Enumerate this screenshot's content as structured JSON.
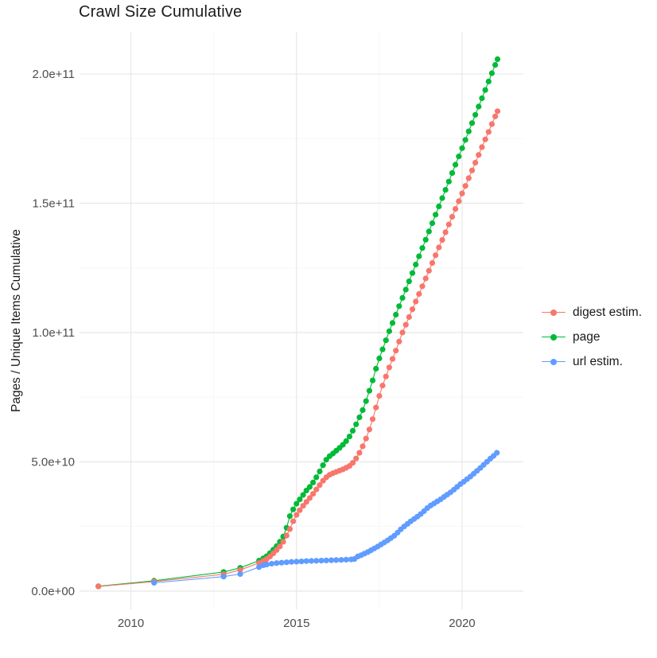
{
  "chart_data": {
    "type": "line",
    "title": "Crawl Size Cumulative",
    "xlabel": "",
    "ylabel": "Pages / Unique Items Cumulative",
    "value_unit": "1e9 (values below are billions of pages / unique items)",
    "xlim": [
      2008.45,
      2021.85
    ],
    "ylim_billions": [
      -7.1,
      216.3
    ],
    "grid": "major and minor, light gray on white",
    "legend_position": "right",
    "x_axis": {
      "major_ticks": [
        {
          "value": 2010,
          "label": "2010"
        },
        {
          "value": 2015,
          "label": "2015"
        },
        {
          "value": 2020,
          "label": "2020"
        }
      ],
      "minor_ticks": [
        2012.5,
        2017.5
      ]
    },
    "y_axis": {
      "major_ticks": [
        {
          "value": 0,
          "label": "0.0e+00"
        },
        {
          "value": 50,
          "label": "5.0e+10"
        },
        {
          "value": 100,
          "label": "1.0e+11"
        },
        {
          "value": 150,
          "label": "1.5e+11"
        },
        {
          "value": 200,
          "label": "2.0e+11"
        }
      ],
      "minor_ticks": [
        25,
        75,
        125,
        175
      ]
    },
    "draw_order": [
      "page",
      "digest estim.",
      "url estim."
    ],
    "series": [
      {
        "name": "digest estim.",
        "color": "#F8766D",
        "points": [
          [
            2009.02,
            1.8
          ],
          [
            2010.7,
            3.7
          ],
          [
            2012.8,
            6.5
          ],
          [
            2013.3,
            8.2
          ],
          [
            2013.87,
            10.9
          ],
          [
            2014.0,
            11.7
          ],
          [
            2014.1,
            12.4
          ],
          [
            2014.2,
            13.4
          ],
          [
            2014.3,
            14.6
          ],
          [
            2014.4,
            15.9
          ],
          [
            2014.5,
            17.3
          ],
          [
            2014.6,
            19.1
          ],
          [
            2014.7,
            21.5
          ],
          [
            2014.8,
            24.0
          ],
          [
            2014.9,
            27.0
          ],
          [
            2015.0,
            29.5
          ],
          [
            2015.1,
            31.3
          ],
          [
            2015.2,
            33.0
          ],
          [
            2015.3,
            34.5
          ],
          [
            2015.4,
            36.0
          ],
          [
            2015.5,
            37.6
          ],
          [
            2015.6,
            39.3
          ],
          [
            2015.7,
            41.0
          ],
          [
            2015.8,
            42.7
          ],
          [
            2015.9,
            44.0
          ],
          [
            2016.0,
            45.0
          ],
          [
            2016.1,
            45.6
          ],
          [
            2016.2,
            46.1
          ],
          [
            2016.3,
            46.6
          ],
          [
            2016.4,
            47.1
          ],
          [
            2016.5,
            47.7
          ],
          [
            2016.6,
            48.4
          ],
          [
            2016.7,
            49.6
          ],
          [
            2016.8,
            51.3
          ],
          [
            2016.9,
            53.5
          ],
          [
            2017.0,
            56.0
          ],
          [
            2017.1,
            59.0
          ],
          [
            2017.2,
            62.5
          ],
          [
            2017.3,
            66.5
          ],
          [
            2017.4,
            71.0
          ],
          [
            2017.5,
            75.5
          ],
          [
            2017.6,
            79.5
          ],
          [
            2017.7,
            83.0
          ],
          [
            2017.8,
            86.5
          ],
          [
            2017.9,
            89.8
          ],
          [
            2018.0,
            93.0
          ],
          [
            2018.1,
            96.5
          ],
          [
            2018.2,
            100.0
          ],
          [
            2018.3,
            103.0
          ],
          [
            2018.4,
            106.0
          ],
          [
            2018.5,
            109.0
          ],
          [
            2018.6,
            112.0
          ],
          [
            2018.7,
            114.9
          ],
          [
            2018.8,
            117.9
          ],
          [
            2018.9,
            120.9
          ],
          [
            2019.0,
            123.9
          ],
          [
            2019.1,
            126.9
          ],
          [
            2019.2,
            129.9
          ],
          [
            2019.3,
            132.9
          ],
          [
            2019.4,
            135.8
          ],
          [
            2019.5,
            138.8
          ],
          [
            2019.6,
            141.8
          ],
          [
            2019.7,
            144.8
          ],
          [
            2019.8,
            147.8
          ],
          [
            2019.9,
            150.8
          ],
          [
            2020.0,
            153.8
          ],
          [
            2020.1,
            156.7
          ],
          [
            2020.2,
            159.7
          ],
          [
            2020.3,
            162.7
          ],
          [
            2020.4,
            165.7
          ],
          [
            2020.5,
            168.7
          ],
          [
            2020.6,
            171.7
          ],
          [
            2020.7,
            174.7
          ],
          [
            2020.8,
            177.6
          ],
          [
            2020.9,
            180.6
          ],
          [
            2021.0,
            183.6
          ],
          [
            2021.07,
            185.6
          ]
        ]
      },
      {
        "name": "page",
        "color": "#00BA38",
        "points": [
          [
            2009.02,
            1.9
          ],
          [
            2010.7,
            4.0
          ],
          [
            2012.8,
            7.4
          ],
          [
            2013.3,
            9.0
          ],
          [
            2013.87,
            11.8
          ],
          [
            2014.0,
            12.7
          ],
          [
            2014.1,
            13.5
          ],
          [
            2014.2,
            14.7
          ],
          [
            2014.3,
            16.0
          ],
          [
            2014.4,
            17.4
          ],
          [
            2014.5,
            19.1
          ],
          [
            2014.6,
            21.1
          ],
          [
            2014.7,
            24.5
          ],
          [
            2014.8,
            29.0
          ],
          [
            2014.9,
            31.6
          ],
          [
            2015.0,
            33.8
          ],
          [
            2015.1,
            35.5
          ],
          [
            2015.2,
            37.2
          ],
          [
            2015.3,
            38.9
          ],
          [
            2015.4,
            40.3
          ],
          [
            2015.5,
            42.0
          ],
          [
            2015.6,
            44.0
          ],
          [
            2015.7,
            46.3
          ],
          [
            2015.8,
            48.7
          ],
          [
            2015.9,
            50.8
          ],
          [
            2016.0,
            52.2
          ],
          [
            2016.1,
            53.2
          ],
          [
            2016.2,
            54.3
          ],
          [
            2016.3,
            55.4
          ],
          [
            2016.4,
            56.6
          ],
          [
            2016.5,
            58.0
          ],
          [
            2016.6,
            59.8
          ],
          [
            2016.7,
            62.0
          ],
          [
            2016.8,
            64.5
          ],
          [
            2016.9,
            67.2
          ],
          [
            2017.0,
            70.0
          ],
          [
            2017.1,
            73.5
          ],
          [
            2017.2,
            77.5
          ],
          [
            2017.3,
            81.5
          ],
          [
            2017.4,
            86.0
          ],
          [
            2017.5,
            90.0
          ],
          [
            2017.6,
            93.5
          ],
          [
            2017.7,
            97.0
          ],
          [
            2017.8,
            100.5
          ],
          [
            2017.9,
            103.7
          ],
          [
            2018.0,
            106.9
          ],
          [
            2018.1,
            110.2
          ],
          [
            2018.2,
            113.4
          ],
          [
            2018.3,
            116.6
          ],
          [
            2018.4,
            119.8
          ],
          [
            2018.5,
            123.0
          ],
          [
            2018.6,
            126.3
          ],
          [
            2018.7,
            129.5
          ],
          [
            2018.8,
            132.7
          ],
          [
            2018.9,
            135.9
          ],
          [
            2019.0,
            139.1
          ],
          [
            2019.1,
            142.3
          ],
          [
            2019.2,
            145.6
          ],
          [
            2019.3,
            148.8
          ],
          [
            2019.4,
            152.0
          ],
          [
            2019.5,
            155.2
          ],
          [
            2019.6,
            158.4
          ],
          [
            2019.7,
            161.7
          ],
          [
            2019.8,
            164.9
          ],
          [
            2019.9,
            168.1
          ],
          [
            2020.0,
            171.3
          ],
          [
            2020.1,
            174.5
          ],
          [
            2020.2,
            177.8
          ],
          [
            2020.3,
            181.0
          ],
          [
            2020.4,
            184.2
          ],
          [
            2020.5,
            187.4
          ],
          [
            2020.6,
            190.6
          ],
          [
            2020.7,
            193.8
          ],
          [
            2020.8,
            197.1
          ],
          [
            2020.9,
            200.3
          ],
          [
            2021.0,
            203.5
          ],
          [
            2021.07,
            205.7
          ]
        ]
      },
      {
        "name": "url estim.",
        "color": "#619CFF",
        "points": [
          [
            2010.7,
            3.2
          ],
          [
            2012.8,
            5.6
          ],
          [
            2013.3,
            6.6
          ],
          [
            2013.87,
            9.3
          ],
          [
            2014.0,
            10.0
          ],
          [
            2014.1,
            10.3
          ],
          [
            2014.25,
            10.6
          ],
          [
            2014.4,
            10.85
          ],
          [
            2014.55,
            11.0
          ],
          [
            2014.7,
            11.15
          ],
          [
            2014.85,
            11.3
          ],
          [
            2015.0,
            11.4
          ],
          [
            2015.15,
            11.5
          ],
          [
            2015.3,
            11.6
          ],
          [
            2015.45,
            11.67
          ],
          [
            2015.6,
            11.74
          ],
          [
            2015.75,
            11.8
          ],
          [
            2015.9,
            11.87
          ],
          [
            2016.05,
            11.94
          ],
          [
            2016.2,
            12.0
          ],
          [
            2016.35,
            12.08
          ],
          [
            2016.5,
            12.16
          ],
          [
            2016.65,
            12.25
          ],
          [
            2016.75,
            12.4
          ],
          [
            2016.85,
            13.4
          ],
          [
            2016.95,
            13.9
          ],
          [
            2017.05,
            14.5
          ],
          [
            2017.15,
            15.1
          ],
          [
            2017.25,
            15.8
          ],
          [
            2017.35,
            16.5
          ],
          [
            2017.45,
            17.2
          ],
          [
            2017.55,
            18.0
          ],
          [
            2017.65,
            18.8
          ],
          [
            2017.75,
            19.6
          ],
          [
            2017.85,
            20.5
          ],
          [
            2017.95,
            21.4
          ],
          [
            2018.05,
            22.6
          ],
          [
            2018.15,
            23.9
          ],
          [
            2018.25,
            25.0
          ],
          [
            2018.35,
            26.0
          ],
          [
            2018.45,
            27.0
          ],
          [
            2018.55,
            27.9
          ],
          [
            2018.65,
            28.8
          ],
          [
            2018.75,
            29.8
          ],
          [
            2018.85,
            30.9
          ],
          [
            2018.95,
            32.1
          ],
          [
            2019.05,
            33.1
          ],
          [
            2019.15,
            33.9
          ],
          [
            2019.25,
            34.7
          ],
          [
            2019.35,
            35.5
          ],
          [
            2019.45,
            36.4
          ],
          [
            2019.55,
            37.3
          ],
          [
            2019.65,
            38.2
          ],
          [
            2019.75,
            39.2
          ],
          [
            2019.85,
            40.3
          ],
          [
            2019.95,
            41.4
          ],
          [
            2020.05,
            42.3
          ],
          [
            2020.15,
            43.3
          ],
          [
            2020.25,
            44.3
          ],
          [
            2020.35,
            45.4
          ],
          [
            2020.45,
            46.5
          ],
          [
            2020.55,
            47.6
          ],
          [
            2020.65,
            48.8
          ],
          [
            2020.75,
            50.0
          ],
          [
            2020.85,
            51.2
          ],
          [
            2020.95,
            52.3
          ],
          [
            2021.05,
            53.5
          ]
        ]
      }
    ]
  },
  "legend": {
    "items": [
      {
        "label": "digest estim.",
        "color": "#F8766D"
      },
      {
        "label": "page",
        "color": "#00BA38"
      },
      {
        "label": "url estim.",
        "color": "#619CFF"
      }
    ]
  },
  "style": {
    "background": "#ffffff",
    "grid_major_color": "#e9e9e9",
    "grid_minor_color": "#f5f5f5",
    "tick_label_color": "#4d4d4d",
    "title_color": "#1a1a1a",
    "point_radius": 3.6,
    "line_width": 1.1
  }
}
